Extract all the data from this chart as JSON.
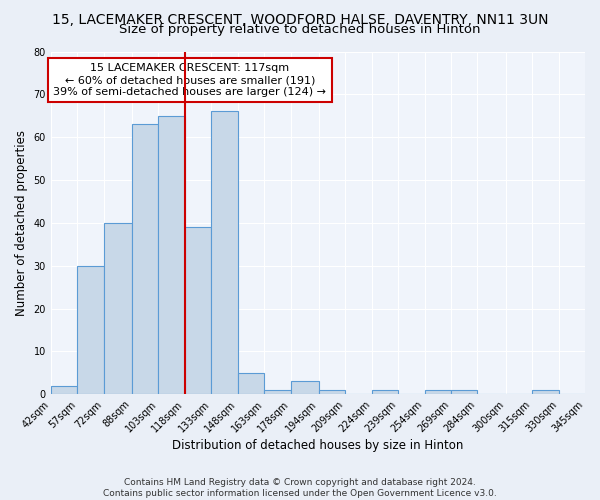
{
  "title": "15, LACEMAKER CRESCENT, WOODFORD HALSE, DAVENTRY, NN11 3UN",
  "subtitle": "Size of property relative to detached houses in Hinton",
  "xlabel": "Distribution of detached houses by size in Hinton",
  "ylabel": "Number of detached properties",
  "bin_edges": [
    42,
    57,
    72,
    88,
    103,
    118,
    133,
    148,
    163,
    178,
    194,
    209,
    224,
    239,
    254,
    269,
    284,
    300,
    315,
    330,
    345
  ],
  "bar_heights": [
    2,
    30,
    40,
    63,
    65,
    39,
    66,
    5,
    1,
    3,
    1,
    0,
    1,
    0,
    1,
    1,
    0,
    0,
    1,
    0
  ],
  "bar_color": "#c8d8e8",
  "bar_edge_color": "#5b9bd5",
  "vline_x": 118,
  "vline_color": "#cc0000",
  "annotation_text": "15 LACEMAKER CRESCENT: 117sqm\n← 60% of detached houses are smaller (191)\n39% of semi-detached houses are larger (124) →",
  "annotation_box_color": "#ffffff",
  "annotation_box_edge_color": "#cc0000",
  "ylim": [
    0,
    80
  ],
  "yticks": [
    0,
    10,
    20,
    30,
    40,
    50,
    60,
    70,
    80
  ],
  "tick_labels": [
    "42sqm",
    "57sqm",
    "72sqm",
    "88sqm",
    "103sqm",
    "118sqm",
    "133sqm",
    "148sqm",
    "163sqm",
    "178sqm",
    "194sqm",
    "209sqm",
    "224sqm",
    "239sqm",
    "254sqm",
    "269sqm",
    "284sqm",
    "300sqm",
    "315sqm",
    "330sqm",
    "345sqm"
  ],
  "footer1": "Contains HM Land Registry data © Crown copyright and database right 2024.",
  "footer2": "Contains public sector information licensed under the Open Government Licence v3.0.",
  "background_color": "#eaeff7",
  "plot_background_color": "#f0f4fb",
  "grid_color": "#ffffff",
  "title_fontsize": 10,
  "subtitle_fontsize": 9.5,
  "axis_label_fontsize": 8.5,
  "tick_fontsize": 7,
  "footer_fontsize": 6.5,
  "annotation_fontsize": 8
}
